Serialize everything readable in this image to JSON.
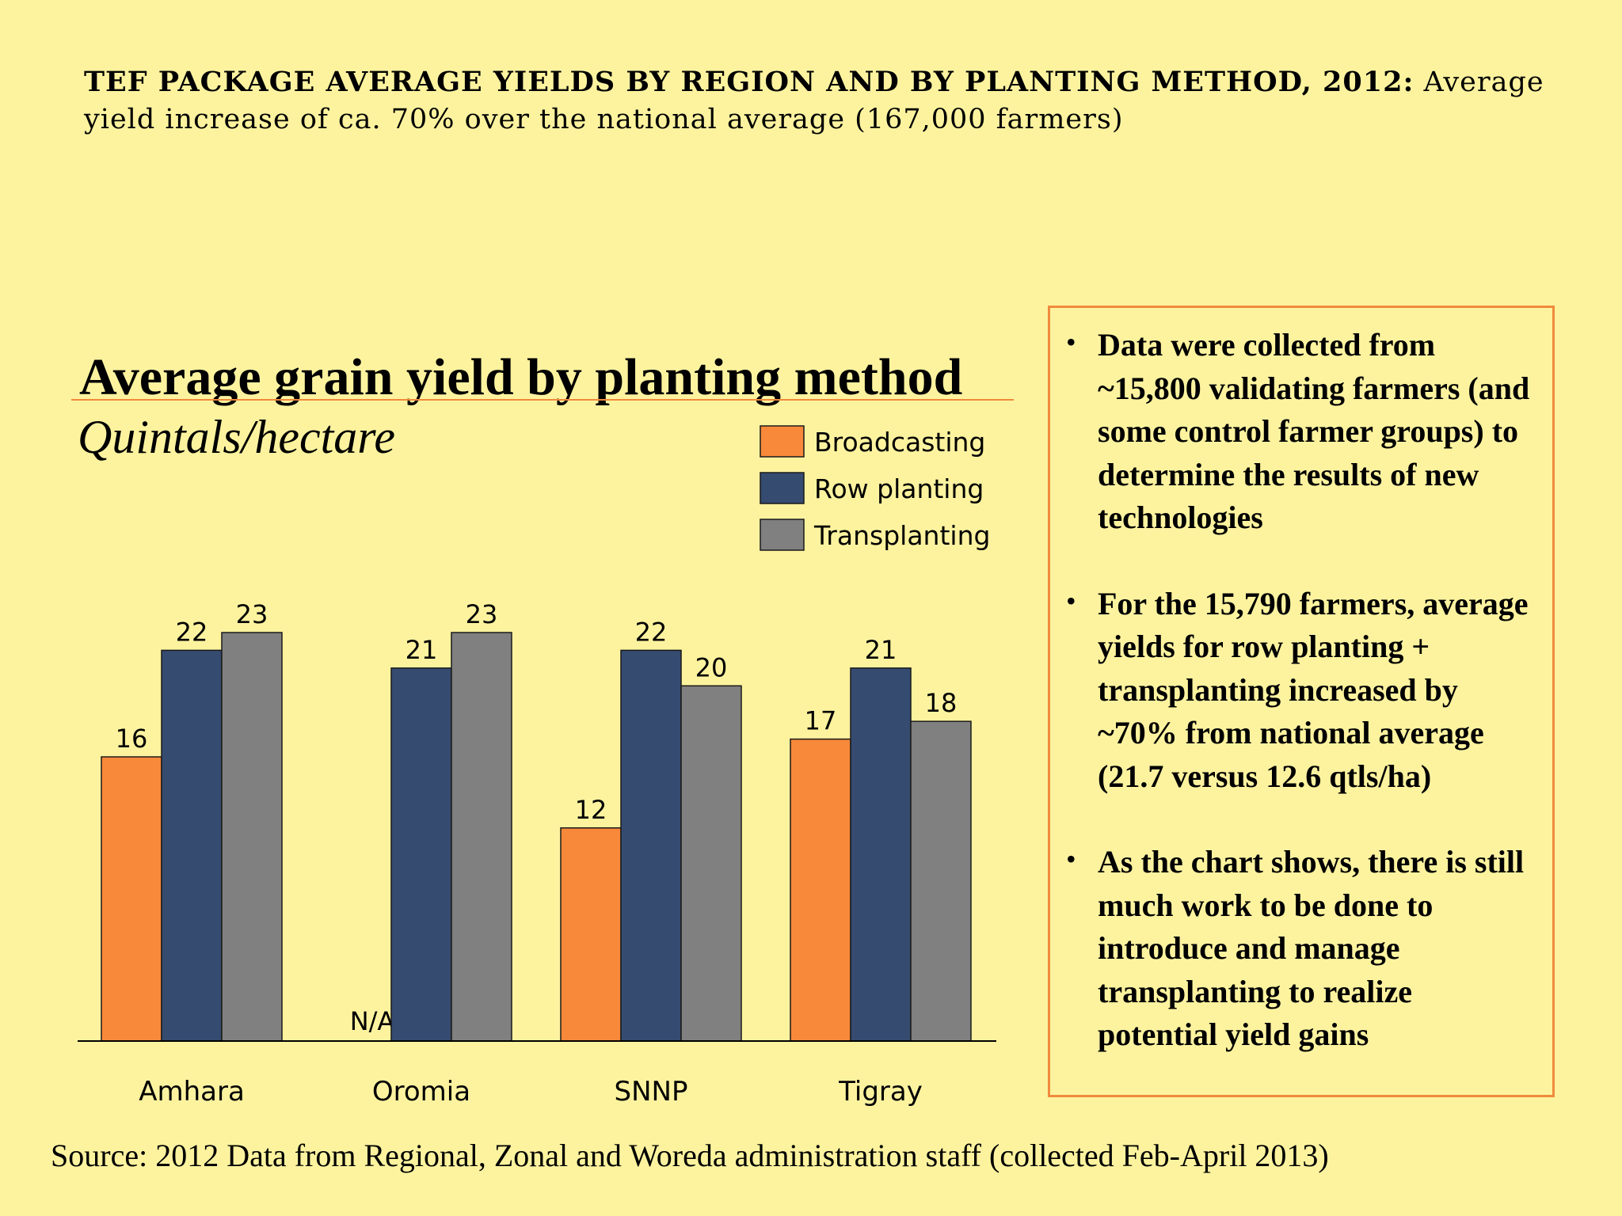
{
  "header": {
    "lead": "TEF PACKAGE AVERAGE YIELDS BY REGION AND BY PLANTING METHOD, 2012:",
    "rest": "Average yield increase of ca. 70% over the national average (167,000 farmers)"
  },
  "chart_data": {
    "type": "bar",
    "title": "Average grain yield by planting method",
    "subtitle": "Quintals/hectare",
    "categories": [
      "Amhara",
      "Oromia",
      "SNNP",
      "Tigray"
    ],
    "series": [
      {
        "name": "Broadcasting",
        "color": "#f8893b",
        "values": [
          16,
          null,
          12,
          17
        ],
        "labels": [
          "16",
          "N/A",
          "12",
          "17"
        ]
      },
      {
        "name": "Row planting",
        "color": "#364b70",
        "values": [
          22,
          21,
          22,
          21
        ],
        "labels": [
          "22",
          "21",
          "22",
          "21"
        ]
      },
      {
        "name": "Transplanting",
        "color": "#808080",
        "values": [
          23,
          23,
          20,
          18
        ],
        "labels": [
          "23",
          "23",
          "20",
          "18"
        ]
      }
    ],
    "ylim": [
      0,
      23
    ],
    "legend": "top-right",
    "grid": false
  },
  "notes": [
    "Data were collected from ~15,800 validating farmers (and some control farmer groups) to determine the results of new technologies",
    "For the 15,790 farmers, average yields for row planting + transplanting increased by ~70% from national average (21.7 versus 12.6 qtls/ha)",
    "As the chart shows, there is still much work to be done to introduce and manage transplanting to realize potential yield gains"
  ],
  "source": "Source:  2012 Data from Regional, Zonal and Woreda administration staff (collected Feb-April 2013)"
}
